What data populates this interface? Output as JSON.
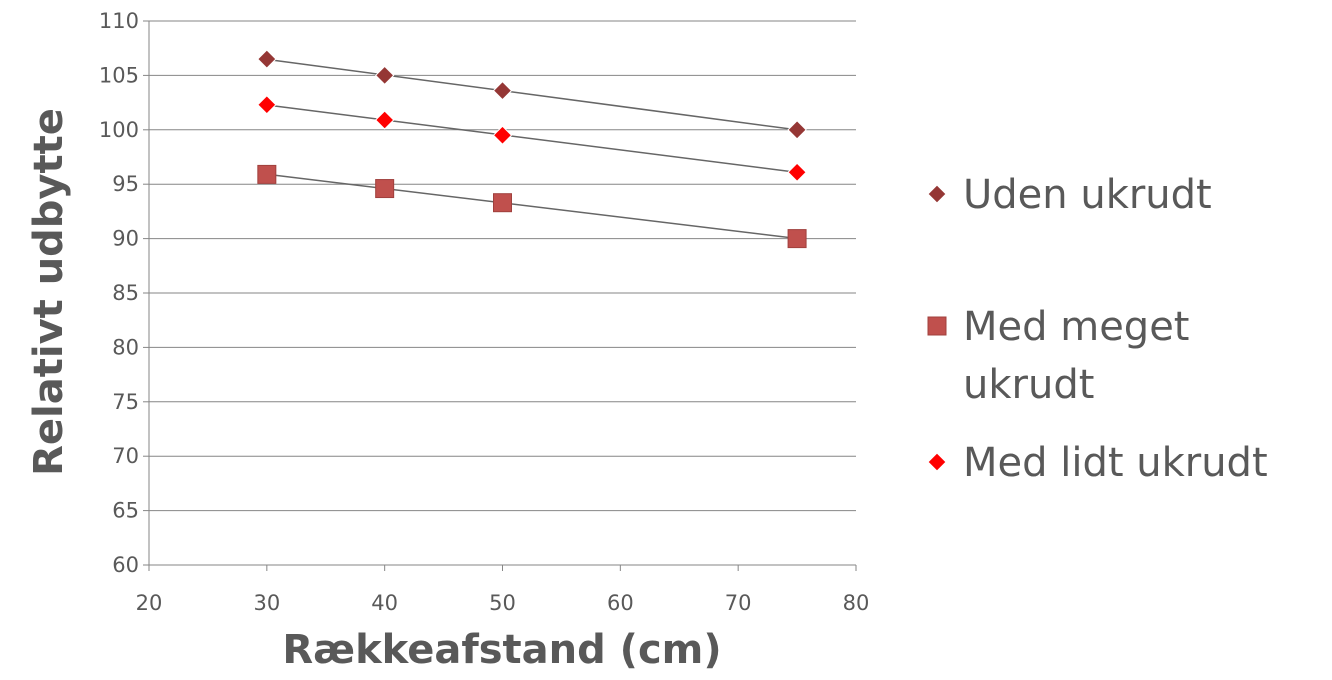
{
  "chart_data": {
    "type": "scatter",
    "title": "",
    "xlabel": "Rækkeafstand (cm)",
    "ylabel": "Relativt udbytte",
    "xlim": [
      20,
      80
    ],
    "ylim": [
      60,
      110
    ],
    "xticks": [
      20,
      30,
      40,
      50,
      60,
      70,
      80
    ],
    "yticks": [
      60,
      65,
      70,
      75,
      80,
      85,
      90,
      95,
      100,
      105,
      110
    ],
    "grid": "horizontal",
    "legend_position": "right",
    "trendlines": "linear",
    "series": [
      {
        "name": "Uden ukrudt",
        "marker": "diamond",
        "color": "#953735",
        "x": [
          30,
          40,
          50,
          75
        ],
        "y": [
          106.5,
          105,
          103.6,
          100
        ]
      },
      {
        "name": "Med meget ukrudt",
        "legend_lines": [
          "Med meget",
          "ukrudt"
        ],
        "marker": "square",
        "color": "#C0504D",
        "x": [
          30,
          40,
          50,
          75
        ],
        "y": [
          95.9,
          94.6,
          93.3,
          90
        ]
      },
      {
        "name": "Med lidt ukrudt",
        "marker": "diamond",
        "color": "#FF0000",
        "x": [
          30,
          40,
          50,
          75
        ],
        "y": [
          102.3,
          100.9,
          99.5,
          96.1
        ]
      }
    ]
  }
}
